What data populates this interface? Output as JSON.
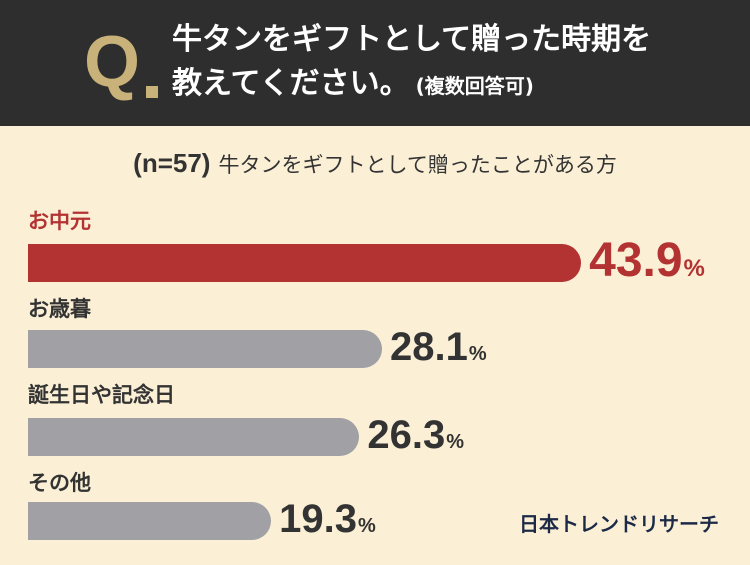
{
  "header": {
    "q_letter": "Q",
    "question_line1": "牛タンをギフトとして贈った時期を",
    "question_line2": "教えてください。",
    "question_note": "(複数回答可)"
  },
  "subtitle": {
    "sample": "(n=57)",
    "audience": "牛タンをギフトとして贈ったことがある方"
  },
  "colors": {
    "highlight_bar": "#b33232",
    "other_bar": "#a0a0a5",
    "highlight_text": "#b33232",
    "other_text": "#333333",
    "header_bg": "#2e2e2e",
    "accent_gold": "#c8b27a",
    "background": "#fbf0d6"
  },
  "chart_data": {
    "type": "bar",
    "orientation": "horizontal",
    "categories": [
      "お中元",
      "お歳暮",
      "誕生日や記念日",
      "その他"
    ],
    "values": [
      43.9,
      28.1,
      26.3,
      19.3
    ],
    "unit": "%",
    "highlight_index": 0,
    "title": "牛タンをギフトとして贈った時期を教えてください。(複数回答可)",
    "subtitle": "(n=57) 牛タンをギフトとして贈ったことがある方",
    "xlabel": "",
    "ylabel": "",
    "grid": false,
    "legend": "none"
  },
  "footer": {
    "logo_text": "日本トレンドリサーチ"
  }
}
